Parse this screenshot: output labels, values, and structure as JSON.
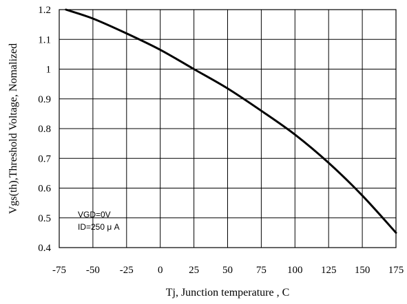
{
  "chart_data": {
    "type": "line",
    "title": "",
    "xlabel": "Tj, Junction temperature , C",
    "ylabel": "Vgs(th),Threshold Voltage, Nomalized",
    "xlim": [
      -75,
      175
    ],
    "ylim": [
      0.4,
      1.2
    ],
    "x_ticks": [
      -75,
      -50,
      -25,
      0,
      25,
      50,
      75,
      100,
      125,
      150,
      175
    ],
    "y_ticks": [
      0.4,
      0.5,
      0.6,
      0.7,
      0.8,
      0.9,
      1.0,
      1.1,
      1.2
    ],
    "x_tick_labels": [
      "-75",
      "-50",
      "-25",
      "0",
      "25",
      "50",
      "75",
      "100",
      "125",
      "150",
      "175"
    ],
    "y_tick_labels": [
      "0.4",
      "0.5",
      "0.6",
      "0.7",
      "0.8",
      "0.9",
      "1",
      "1.1",
      "1.2"
    ],
    "grid": true,
    "series": [
      {
        "x": [
          -70,
          -50,
          -25,
          0,
          25,
          50,
          75,
          100,
          125,
          150,
          175
        ],
        "y": [
          1.2,
          1.17,
          1.12,
          1.065,
          1.0,
          0.935,
          0.86,
          0.78,
          0.685,
          0.575,
          0.45
        ]
      }
    ],
    "annotations": [
      "VGD=0V",
      "ID=250 μ A"
    ]
  }
}
